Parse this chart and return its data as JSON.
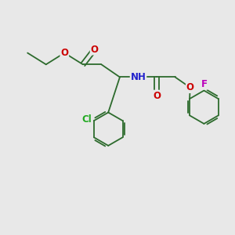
{
  "bg_color": "#e8e8e8",
  "bond_color": "#2d6b2d",
  "atom_colors": {
    "O": "#cc0000",
    "N": "#2222cc",
    "Cl": "#22aa22",
    "F": "#bb00bb",
    "H": "#888888",
    "C": "#2d6b2d"
  },
  "font_size": 8.5,
  "fig_size": [
    3.0,
    3.0
  ],
  "dpi": 100
}
